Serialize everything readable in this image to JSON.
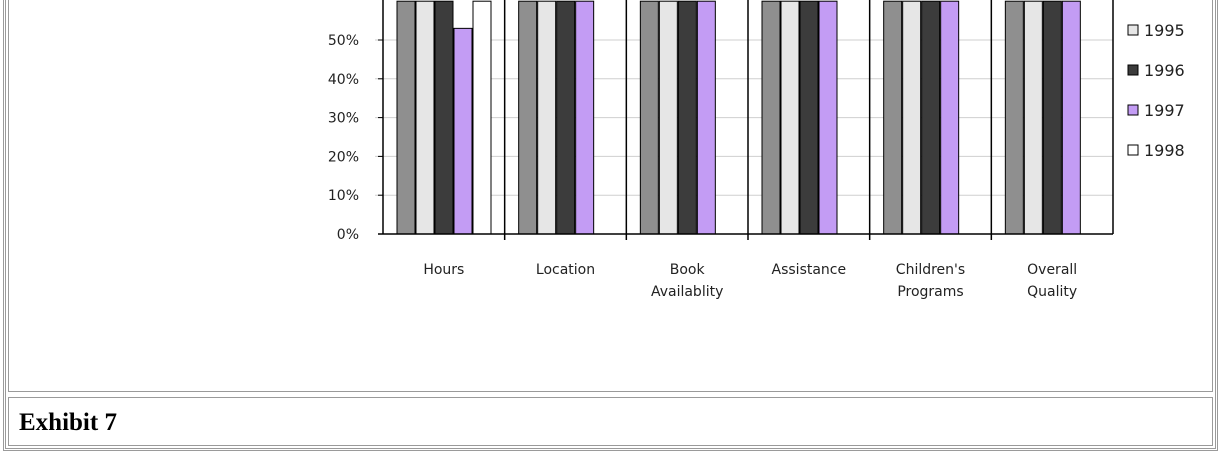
{
  "caption": "Exhibit 7",
  "chart_data": {
    "type": "bar",
    "title": "",
    "xlabel": "",
    "ylabel": "",
    "ylim": [
      0,
      100
    ],
    "yticks": [
      "0%",
      "10%",
      "20%",
      "30%",
      "40%",
      "50%"
    ],
    "categories": [
      [
        "Hours"
      ],
      [
        "Location"
      ],
      [
        "Book",
        "Availablity"
      ],
      [
        "Assistance"
      ],
      [
        "Children's",
        "Programs"
      ],
      [
        "Overall",
        "Quality"
      ]
    ],
    "series": [
      {
        "name": "",
        "color": "#8f8f8f",
        "values": [
          60,
          60,
          60,
          60,
          60,
          60
        ]
      },
      {
        "name": "1995",
        "color": "#e6e6e6",
        "values": [
          60,
          60,
          60,
          60,
          60,
          60
        ]
      },
      {
        "name": "1996",
        "color": "#3c3c3c",
        "values": [
          60,
          60,
          60,
          60,
          60,
          60
        ]
      },
      {
        "name": "1997",
        "color": "#c39cf4",
        "values": [
          53,
          60,
          60,
          60,
          60,
          60
        ]
      },
      {
        "name": "1998",
        "color": "#ffffff",
        "values": [
          60,
          null,
          null,
          null,
          null,
          null
        ]
      }
    ],
    "legend": [
      "1995",
      "1996",
      "1997",
      "1998"
    ],
    "legend_position": "right",
    "grid": true
  }
}
